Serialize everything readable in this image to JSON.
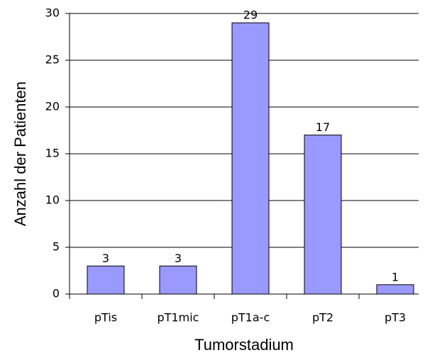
{
  "chart_data": {
    "type": "bar",
    "categories": [
      "pTis",
      "pT1mic",
      "pT1a-c",
      "pT2",
      "pT3"
    ],
    "values": [
      3,
      3,
      29,
      17,
      1
    ],
    "color": "#9999ff",
    "xlabel": "Tumorstadium",
    "ylabel": "Anzahl der Patienten",
    "ylim": [
      0,
      30
    ],
    "yticks": [
      0,
      5,
      10,
      15,
      20,
      25,
      30
    ],
    "grid": true
  }
}
